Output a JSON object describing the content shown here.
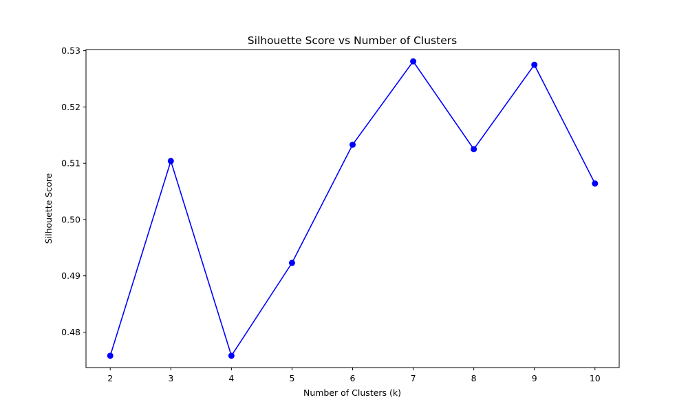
{
  "chart_data": {
    "type": "line",
    "title": "Silhouette Score vs Number of Clusters",
    "xlabel": "Number of Clusters (k)",
    "ylabel": "Silhouette Score",
    "x": [
      2,
      3,
      4,
      5,
      6,
      7,
      8,
      9,
      10
    ],
    "series": [
      {
        "values": [
          0.4758,
          0.5104,
          0.4758,
          0.4923,
          0.5133,
          0.5281,
          0.5125,
          0.5275,
          0.5064
        ],
        "color": "#0000ff",
        "marker": "circle"
      }
    ],
    "xlim": [
      1.6,
      10.4
    ],
    "ylim": [
      0.4737,
      0.5302
    ],
    "xticks": [
      "2",
      "3",
      "4",
      "5",
      "6",
      "7",
      "8",
      "9",
      "10"
    ],
    "yticks": [
      "0.48",
      "0.49",
      "0.50",
      "0.51",
      "0.52",
      "0.53"
    ],
    "grid": false
  }
}
